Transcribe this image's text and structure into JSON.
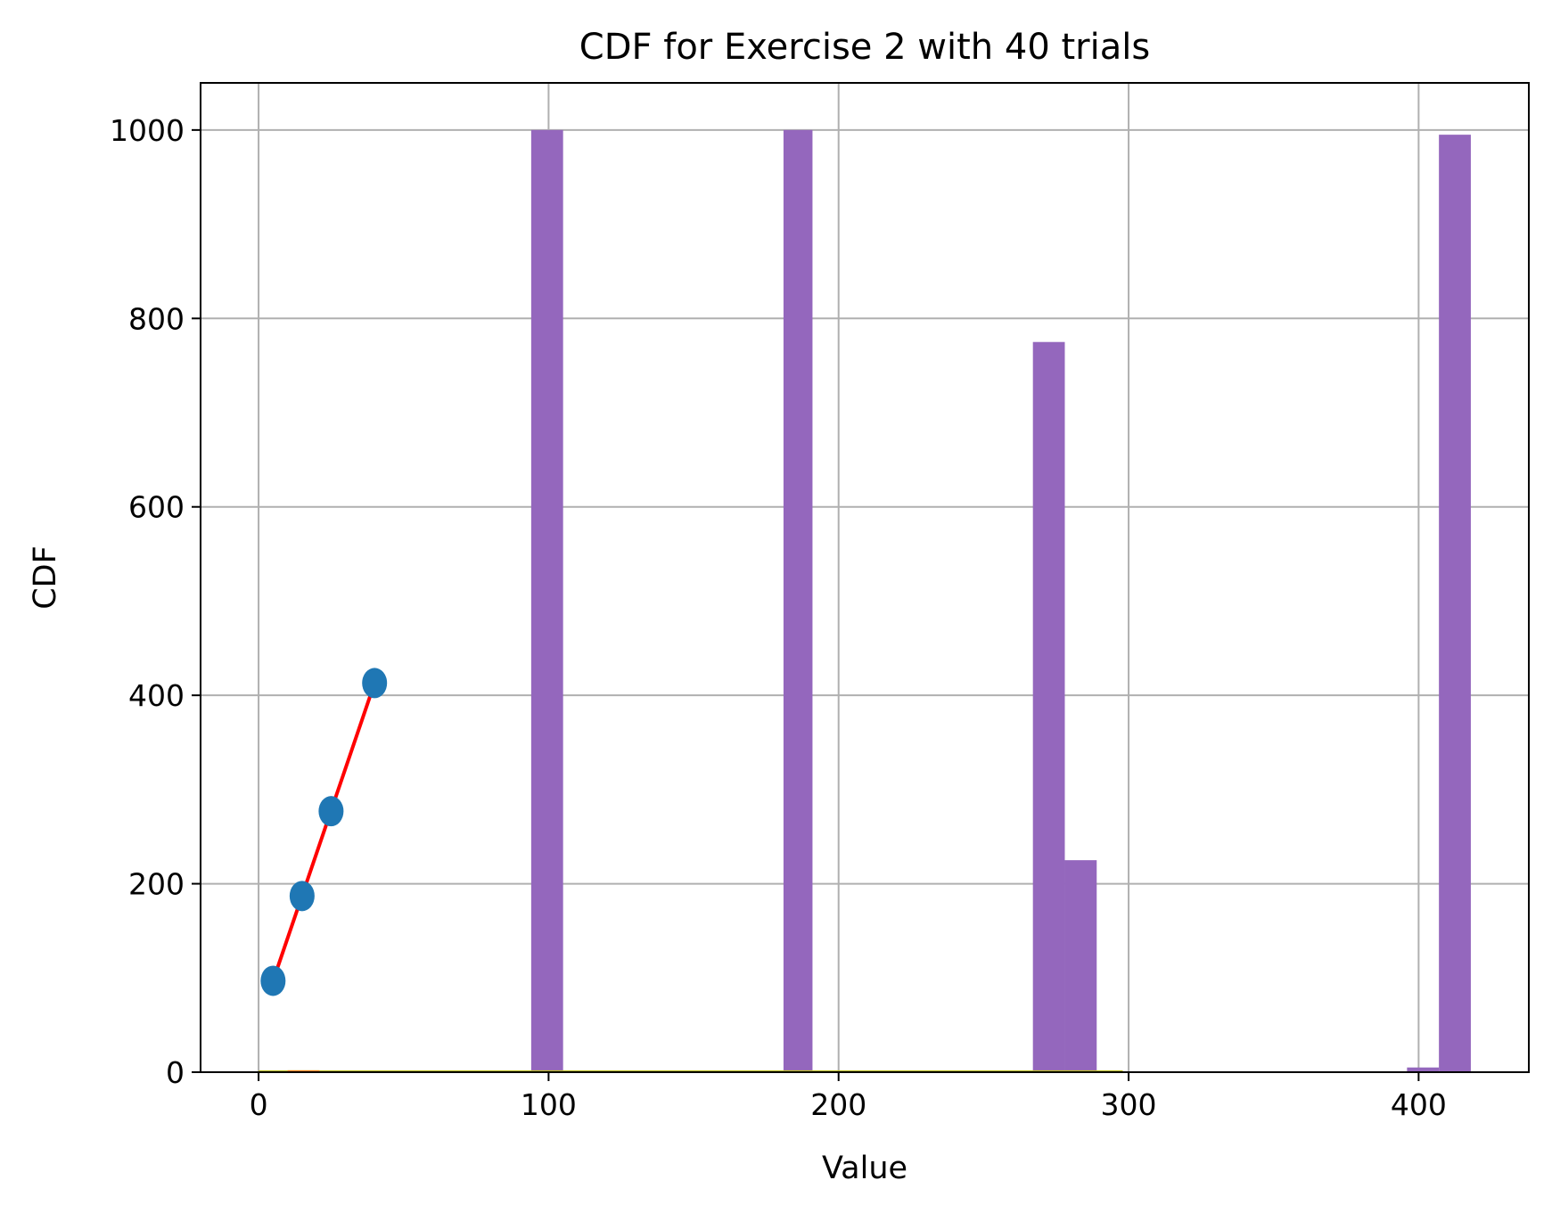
{
  "chart_data": {
    "type": "bar",
    "title": "CDF for Exercise 2 with 40 trials",
    "xlabel": "Value",
    "ylabel": "CDF",
    "xlim": [
      -20,
      438
    ],
    "ylim": [
      0,
      1050
    ],
    "xticks": [
      0,
      100,
      200,
      300,
      400
    ],
    "yticks": [
      0,
      200,
      400,
      600,
      800,
      1000
    ],
    "grid": true,
    "colors": {
      "histogram": "#9467bd",
      "scatter": "#1f77b4",
      "line": "#ff0000",
      "baseline_orange": "#ff7f0e",
      "baseline_olive": "#bcbd22"
    },
    "histogram_bins": [
      {
        "x0": 94,
        "x1": 105,
        "value": 1000
      },
      {
        "x0": 181,
        "x1": 191,
        "value": 1000
      },
      {
        "x0": 267,
        "x1": 278,
        "value": 775
      },
      {
        "x0": 278,
        "x1": 289,
        "value": 225
      },
      {
        "x0": 396,
        "x1": 407,
        "value": 5
      },
      {
        "x0": 407,
        "x1": 418,
        "value": 995
      }
    ],
    "scatter_points": [
      {
        "x": 5,
        "y": 97
      },
      {
        "x": 15,
        "y": 187
      },
      {
        "x": 25,
        "y": 277
      },
      {
        "x": 40,
        "y": 413
      }
    ],
    "line_points": [
      {
        "x": 5,
        "y": 97
      },
      {
        "x": 40,
        "y": 413
      }
    ],
    "baseline_segments": [
      {
        "series": "olive",
        "x0": 0,
        "x1": 298,
        "value": 2
      },
      {
        "series": "orange",
        "x0": 10,
        "x1": 21,
        "value": 2
      }
    ]
  }
}
